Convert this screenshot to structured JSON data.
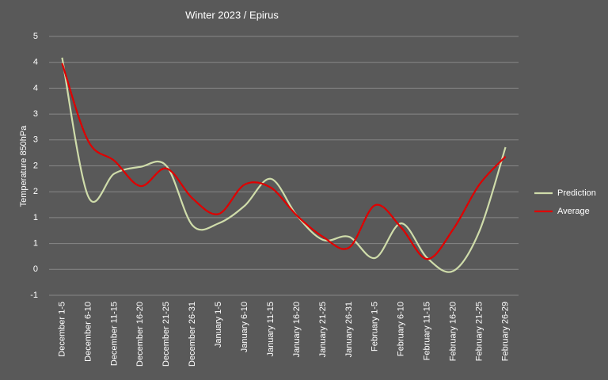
{
  "chart_data": {
    "type": "line",
    "title": "Winter 2023 / Epirus",
    "y_label": "Temperature  850hPa",
    "categories": [
      "December 1-5",
      "December 6-10",
      "December 11-15",
      "December 16-20",
      "December 21-25",
      "December 26-31",
      "January 1-5",
      "January 6-10",
      "January 11-15",
      "January 16-20",
      "January 21-25",
      "January 26-31",
      "February 1-5",
      "February 6-10",
      "February 11-15",
      "February 16-20",
      "February 21-25",
      "February 26-29"
    ],
    "series": [
      {
        "name": "Prediction",
        "color": "#cfdcaa",
        "values": [
          4.09,
          1.41,
          1.85,
          1.98,
          2.0,
          0.85,
          0.89,
          1.23,
          1.75,
          1.04,
          0.57,
          0.63,
          0.22,
          0.89,
          0.22,
          -0.03,
          0.74,
          2.36
        ]
      },
      {
        "name": "Average",
        "color": "#e00000",
        "values": [
          3.98,
          2.48,
          2.1,
          1.61,
          1.95,
          1.37,
          1.07,
          1.64,
          1.58,
          1.04,
          0.63,
          0.42,
          1.24,
          0.81,
          0.2,
          0.78,
          1.64,
          2.18
        ]
      }
    ],
    "ylim": [
      -0.5,
      4.5
    ],
    "yticks": [
      {
        "value": -0.5,
        "label": "-1"
      },
      0,
      {
        "value": 0.5,
        "label": "1"
      },
      {
        "value": 1,
        "label": "1"
      },
      {
        "value": 1.5,
        "label": "2"
      },
      {
        "value": 2,
        "label": "2"
      },
      {
        "value": 2.5,
        "label": "3"
      },
      {
        "value": 3,
        "label": "3"
      },
      {
        "value": 3.5,
        "label": "4"
      },
      {
        "value": 4,
        "label": "4"
      },
      {
        "value": 4.5,
        "label": "5"
      }
    ],
    "grid": true,
    "legend": "right",
    "smooth": true
  }
}
